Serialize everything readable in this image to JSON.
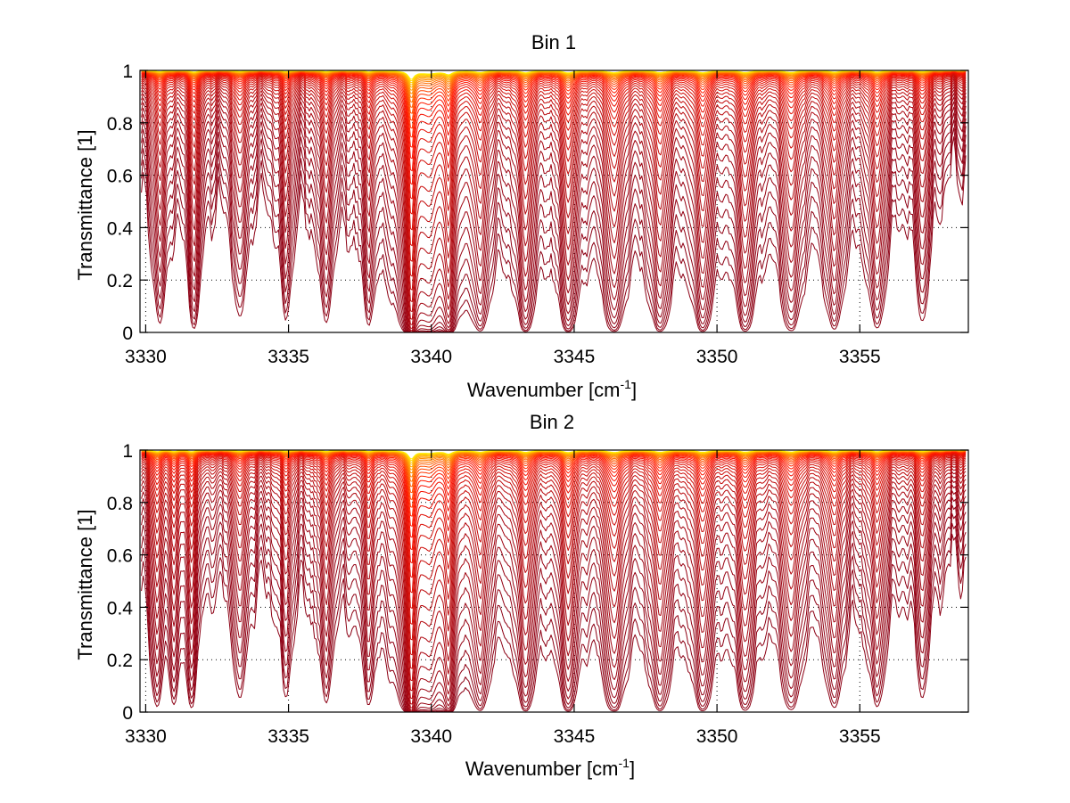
{
  "figure": {
    "background": "#ffffff"
  },
  "chart_data": [
    {
      "type": "line",
      "title": "Bin 1",
      "xlabel": "Wavenumber [cm",
      "xlabel_superscript": "-1",
      "xlabel_suffix": "]",
      "ylabel": "Transmittance [1]",
      "xlim": [
        3329.8,
        3358.8
      ],
      "ylim": [
        0,
        1.0
      ],
      "x_ticks": [
        3330,
        3335,
        3340,
        3345,
        3350,
        3355
      ],
      "x_tick_labels": [
        "3330",
        "3335",
        "3340",
        "3345",
        "3350",
        "3355"
      ],
      "y_ticks": [
        0,
        0.2,
        0.4,
        0.6,
        0.8,
        1
      ],
      "y_tick_labels": [
        "0",
        "0.2",
        "0.4",
        "0.6",
        "0.8",
        "1"
      ],
      "grid": true,
      "legend": "none",
      "colormap": "autumn (dark red at low transmittance to yellow near 1)",
      "series_count": 40,
      "absorption_lines": [
        {
          "center": 3330.5,
          "strength": 0.9,
          "width": 0.18
        },
        {
          "center": 3331.7,
          "strength": 1.1,
          "width": 0.16
        },
        {
          "center": 3333.3,
          "strength": 0.8,
          "width": 0.18
        },
        {
          "center": 3334.9,
          "strength": 0.75,
          "width": 0.16
        },
        {
          "center": 3336.3,
          "strength": 0.8,
          "width": 0.18
        },
        {
          "center": 3337.8,
          "strength": 0.75,
          "width": 0.16
        },
        {
          "center": 3339.3,
          "strength": 6.0,
          "width": 0.12
        },
        {
          "center": 3339.9,
          "strength": 2.2,
          "width": 0.5
        },
        {
          "center": 3340.6,
          "strength": 2.4,
          "width": 0.14
        },
        {
          "center": 3341.7,
          "strength": 1.3,
          "width": 0.2
        },
        {
          "center": 3343.3,
          "strength": 1.5,
          "width": 0.22
        },
        {
          "center": 3344.8,
          "strength": 1.6,
          "width": 0.22
        },
        {
          "center": 3346.4,
          "strength": 1.6,
          "width": 0.24
        },
        {
          "center": 3348.0,
          "strength": 1.5,
          "width": 0.24
        },
        {
          "center": 3349.5,
          "strength": 1.5,
          "width": 0.24
        },
        {
          "center": 3351.0,
          "strength": 1.4,
          "width": 0.24
        },
        {
          "center": 3352.6,
          "strength": 1.4,
          "width": 0.24
        },
        {
          "center": 3354.1,
          "strength": 1.2,
          "width": 0.22
        },
        {
          "center": 3355.6,
          "strength": 1.1,
          "width": 0.22
        },
        {
          "center": 3357.2,
          "strength": 0.8,
          "width": 0.2
        }
      ],
      "background_absorbance": 0.12
    },
    {
      "type": "line",
      "title": "Bin 2",
      "xlabel": "Wavenumber [cm",
      "xlabel_superscript": "-1",
      "xlabel_suffix": "]",
      "ylabel": "Transmittance [1]",
      "xlim": [
        3329.8,
        3358.8
      ],
      "ylim": [
        0,
        1.0
      ],
      "x_ticks": [
        3330,
        3335,
        3340,
        3345,
        3350,
        3355
      ],
      "x_tick_labels": [
        "3330",
        "3335",
        "3340",
        "3345",
        "3350",
        "3355"
      ],
      "y_ticks": [
        0,
        0.2,
        0.4,
        0.6,
        0.8,
        1
      ],
      "y_tick_labels": [
        "0",
        "0.2",
        "0.4",
        "0.6",
        "0.8",
        "1"
      ],
      "grid": true,
      "legend": "none",
      "colormap": "autumn (dark red at low transmittance to yellow near 1)",
      "series_count": 40,
      "absorption_lines": [
        {
          "center": 3330.4,
          "strength": 1.0,
          "width": 0.16
        },
        {
          "center": 3331.0,
          "strength": 0.8,
          "width": 0.14
        },
        {
          "center": 3331.6,
          "strength": 1.0,
          "width": 0.15
        },
        {
          "center": 3333.3,
          "strength": 0.8,
          "width": 0.18
        },
        {
          "center": 3334.9,
          "strength": 0.7,
          "width": 0.16
        },
        {
          "center": 3336.3,
          "strength": 0.8,
          "width": 0.18
        },
        {
          "center": 3337.8,
          "strength": 0.75,
          "width": 0.16
        },
        {
          "center": 3339.3,
          "strength": 6.0,
          "width": 0.12
        },
        {
          "center": 3339.9,
          "strength": 2.0,
          "width": 0.5
        },
        {
          "center": 3340.6,
          "strength": 2.2,
          "width": 0.14
        },
        {
          "center": 3341.7,
          "strength": 1.3,
          "width": 0.2
        },
        {
          "center": 3343.3,
          "strength": 1.4,
          "width": 0.22
        },
        {
          "center": 3344.8,
          "strength": 1.5,
          "width": 0.22
        },
        {
          "center": 3346.4,
          "strength": 1.6,
          "width": 0.24
        },
        {
          "center": 3348.0,
          "strength": 1.4,
          "width": 0.24
        },
        {
          "center": 3349.5,
          "strength": 1.4,
          "width": 0.24
        },
        {
          "center": 3351.0,
          "strength": 1.3,
          "width": 0.24
        },
        {
          "center": 3352.6,
          "strength": 1.3,
          "width": 0.24
        },
        {
          "center": 3354.1,
          "strength": 1.1,
          "width": 0.22
        },
        {
          "center": 3355.6,
          "strength": 1.0,
          "width": 0.22
        },
        {
          "center": 3357.2,
          "strength": 0.7,
          "width": 0.2
        }
      ],
      "background_absorbance": 0.14
    }
  ]
}
